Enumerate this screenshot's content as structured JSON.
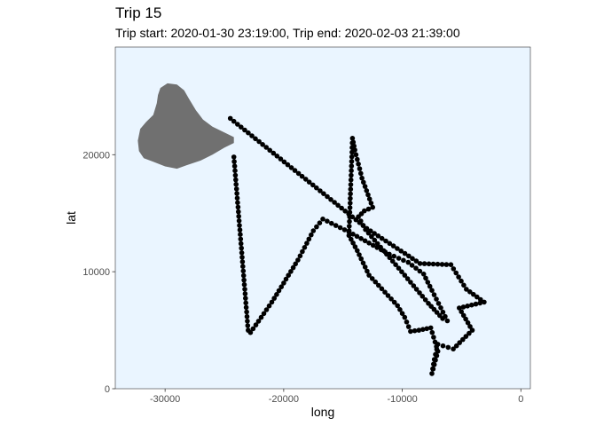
{
  "chart_data": {
    "type": "scatter",
    "title": "Trip 15",
    "subtitle": "Trip start: 2020-01-30 23:19:00, Trip end: 2020-02-03 21:39:00",
    "xlabel": "long",
    "ylabel": "lat",
    "xlim": [
      -34200,
      800
    ],
    "ylim": [
      0,
      29200
    ],
    "x_ticks": [
      -30000,
      -20000,
      -10000,
      0
    ],
    "x_tick_labels": [
      "-30000",
      "-20000",
      "-10000",
      "0"
    ],
    "y_ticks": [
      0,
      10000,
      20000
    ],
    "y_tick_labels": [
      "0",
      "10000",
      "20000"
    ],
    "grid": false,
    "legend": "none",
    "colors": {
      "panel_background": "#eaf5ff",
      "panel_border": "#333333",
      "land": "#707070",
      "points": "#000000"
    },
    "land_outline": [
      [
        -30400,
        25700
      ],
      [
        -29800,
        26100
      ],
      [
        -29000,
        26000
      ],
      [
        -28400,
        25500
      ],
      [
        -28000,
        24800
      ],
      [
        -27400,
        23800
      ],
      [
        -26800,
        23000
      ],
      [
        -26000,
        22400
      ],
      [
        -25000,
        21900
      ],
      [
        -24200,
        21500
      ],
      [
        -24200,
        21000
      ],
      [
        -25000,
        20600
      ],
      [
        -26000,
        20000
      ],
      [
        -27000,
        19500
      ],
      [
        -28200,
        19100
      ],
      [
        -29000,
        18800
      ],
      [
        -30000,
        19000
      ],
      [
        -31000,
        19400
      ],
      [
        -31800,
        19700
      ],
      [
        -32200,
        20300
      ],
      [
        -32300,
        21200
      ],
      [
        -32100,
        22200
      ],
      [
        -31600,
        22800
      ],
      [
        -31000,
        23400
      ],
      [
        -30700,
        24400
      ],
      [
        -30600,
        25100
      ]
    ],
    "track": [
      [
        -24500,
        23100
      ],
      [
        -13000,
        13700
      ],
      [
        -8500,
        10700
      ],
      [
        -5900,
        10600
      ],
      [
        -4600,
        8500
      ],
      [
        -3100,
        7400
      ],
      [
        -5200,
        6900
      ],
      [
        -4100,
        5000
      ],
      [
        -5700,
        3400
      ],
      [
        -7000,
        3800
      ],
      [
        -7300,
        2500
      ],
      [
        -7500,
        1300
      ],
      [
        -7000,
        3200
      ],
      [
        -7600,
        5200
      ],
      [
        -8600,
        5000
      ],
      [
        -9300,
        4900
      ],
      [
        -9800,
        6100
      ],
      [
        -10400,
        7100
      ],
      [
        -12800,
        9700
      ],
      [
        -13800,
        11800
      ],
      [
        -14500,
        13100
      ],
      [
        -14200,
        21400
      ],
      [
        -14000,
        20400
      ],
      [
        -13400,
        18000
      ],
      [
        -12500,
        15500
      ],
      [
        -13200,
        15200
      ],
      [
        -13700,
        14700
      ],
      [
        -13100,
        13600
      ],
      [
        -9800,
        9700
      ],
      [
        -7800,
        7300
      ],
      [
        -6600,
        6000
      ],
      [
        -6200,
        5800
      ],
      [
        -7500,
        8400
      ],
      [
        -8200,
        9800
      ],
      [
        -9500,
        10800
      ],
      [
        -11100,
        11500
      ],
      [
        -14500,
        13400
      ],
      [
        -16700,
        14500
      ],
      [
        -17500,
        13500
      ],
      [
        -18800,
        11000
      ],
      [
        -21000,
        7400
      ],
      [
        -22800,
        4800
      ],
      [
        -23000,
        5000
      ],
      [
        -24200,
        19800
      ]
    ]
  }
}
